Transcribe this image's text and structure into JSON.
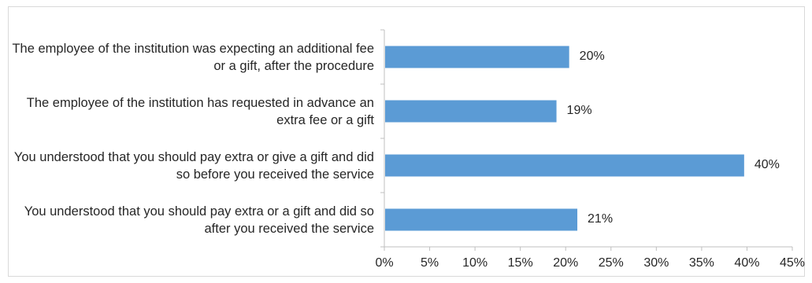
{
  "chart_data": {
    "type": "bar",
    "orientation": "horizontal",
    "categories": [
      "The employee of the institution was expecting an additional fee or a gift, after the procedure",
      "The employee of the institution has requested in advance an extra fee or a gift",
      "You understood that you should pay extra or give a gift and did so before you received the service",
      "You understood that you should pay extra or a gift and did so after you received the service"
    ],
    "values": [
      20.3,
      18.9,
      39.6,
      21.2
    ],
    "data_labels": [
      "20%",
      "19%",
      "40%",
      "21%"
    ],
    "x_ticks": [
      "0%",
      "5%",
      "10%",
      "15%",
      "20%",
      "25%",
      "30%",
      "35%",
      "40%",
      "45%"
    ],
    "xlim": [
      0,
      45
    ],
    "bar_color": "#5b9bd5",
    "grid": false,
    "legend": "none"
  }
}
